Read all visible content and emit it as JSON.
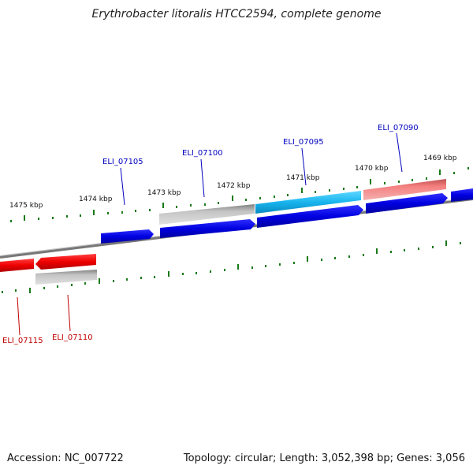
{
  "title": "Erythrobacter litoralis HTCC2594, complete genome",
  "footer": {
    "accession": "Accession: NC_007722",
    "summary": "Topology: circular; Length: 3,052,398 bp; Genes: 3,056"
  },
  "kbp_labels": [
    "1475 kbp",
    "1474 kbp",
    "1473 kbp",
    "1472 kbp",
    "1471 kbp",
    "1470 kbp",
    "1469 kbp"
  ],
  "gene_labels_top": [
    "ELI_07105",
    "ELI_07100",
    "ELI_07095",
    "ELI_07090"
  ],
  "gene_labels_bottom": [
    "ELI_07115",
    "ELI_07110"
  ],
  "colors": {
    "cds": "#0000e0",
    "cds_highlight": "#1ab8f0",
    "reverse_strand": "#ee0000",
    "pseudo_pink": "#f07070",
    "gray_feature": "#b0b0b0",
    "backbone": "#707070",
    "ticks": "#1a7a1a"
  }
}
